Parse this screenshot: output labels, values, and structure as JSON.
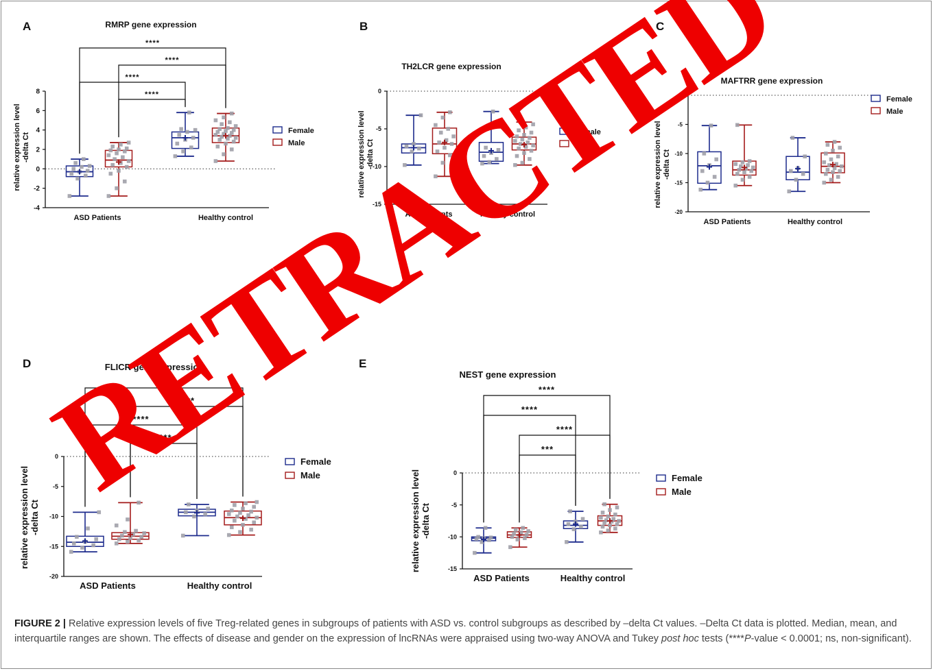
{
  "caption": {
    "label": "FIGURE 2 |",
    "text": " Relative expression levels of five Treg-related genes in subgroups of patients with ASD vs. control subgroups as described by –delta Ct values. –Delta Ct data is plotted. Median, mean, and interquartile ranges are shown. The effects of disease and gender on the expression of lncRNAs were appraised using two-way ANOVA and Tukey ",
    "italic1": "post hoc",
    "text2": " tests (****",
    "italic2": "P",
    "text3": "-value < 0.0001; ns, non-significant)."
  },
  "watermark": "RETRACTED",
  "colors": {
    "female": "#1c2a8c",
    "male": "#a31a1a",
    "point": "#a0a0a8",
    "watermark": "#ee0000"
  },
  "chart_data": [
    {
      "panel": "A",
      "type": "box",
      "title": "RMRP gene expression",
      "ylabel": "relative expression level\n-delta Ct",
      "ylim": [
        -4,
        8
      ],
      "yticks": [
        -4,
        -2,
        0,
        2,
        4,
        6,
        8
      ],
      "categories": [
        "ASD Patients",
        "Healthy control"
      ],
      "legend": [
        "Female",
        "Male"
      ],
      "boxes": [
        {
          "group": 0,
          "sex": "Female",
          "min": -2.8,
          "q1": -0.8,
          "median": -0.3,
          "q3": 0.3,
          "max": 1.0,
          "mean": -0.3,
          "points": [
            -2.8,
            -1.0,
            -0.7,
            -0.5,
            -0.3,
            -0.2,
            0.0,
            0.2,
            0.3,
            0.6,
            1.0
          ]
        },
        {
          "group": 0,
          "sex": "Male",
          "min": -2.8,
          "q1": 0.2,
          "median": 0.9,
          "q3": 1.9,
          "max": 2.7,
          "mean": 0.7,
          "points": [
            -2.8,
            -2.0,
            -1.3,
            -0.5,
            -0.2,
            0.2,
            0.4,
            0.6,
            0.8,
            1.0,
            1.2,
            1.4,
            1.6,
            1.8,
            1.9,
            2.0,
            2.1,
            2.3,
            2.5,
            2.7
          ]
        },
        {
          "group": 1,
          "sex": "Female",
          "min": 1.3,
          "q1": 2.1,
          "median": 3.2,
          "q3": 3.8,
          "max": 5.8,
          "mean": 3.2,
          "points": [
            1.3,
            1.8,
            2.2,
            2.6,
            3.0,
            3.2,
            3.5,
            3.8,
            4.0,
            4.1,
            5.8
          ]
        },
        {
          "group": 1,
          "sex": "Male",
          "min": 0.8,
          "q1": 2.7,
          "median": 3.4,
          "q3": 4.2,
          "max": 5.7,
          "mean": 3.4,
          "points": [
            0.8,
            1.5,
            2.0,
            2.3,
            2.6,
            2.8,
            3.0,
            3.1,
            3.2,
            3.3,
            3.4,
            3.5,
            3.6,
            3.7,
            3.8,
            3.9,
            4.0,
            4.1,
            4.2,
            4.4,
            4.6,
            4.8,
            5.0,
            5.3,
            5.7
          ]
        }
      ],
      "brackets": [
        {
          "from": [
            0,
            "Female"
          ],
          "to": [
            1,
            "Male"
          ],
          "label": "****"
        },
        {
          "from": [
            0,
            "Male"
          ],
          "to": [
            1,
            "Male"
          ],
          "label": "****"
        },
        {
          "from": [
            0,
            "Female"
          ],
          "to": [
            1,
            "Female"
          ],
          "label": "****"
        },
        {
          "from": [
            0,
            "Male"
          ],
          "to": [
            1,
            "Female"
          ],
          "label": "****"
        }
      ]
    },
    {
      "panel": "B",
      "type": "box",
      "title": "TH2LCR gene expression",
      "ylabel": "relative expression level\n-delta Ct",
      "ylim": [
        -15,
        0
      ],
      "yticks": [
        -15,
        -10,
        -5,
        0
      ],
      "categories": [
        "ASD Patients",
        "Healthy control"
      ],
      "legend": [
        "Female",
        "Male"
      ],
      "boxes": [
        {
          "group": 0,
          "sex": "Female",
          "min": -9.8,
          "q1": -8.2,
          "median": -7.5,
          "q3": -7.0,
          "max": -3.2,
          "mean": -7.5,
          "points": [
            -9.8,
            -8.0,
            -7.6,
            -7.3,
            -7.0,
            -3.2
          ]
        },
        {
          "group": 0,
          "sex": "Male",
          "min": -11.3,
          "q1": -8.3,
          "median": -7.0,
          "q3": -4.9,
          "max": -2.8,
          "mean": -6.8,
          "points": [
            -11.3,
            -9.5,
            -8.5,
            -8.0,
            -7.5,
            -7.0,
            -6.8,
            -6.5,
            -6.0,
            -5.5,
            -5.0,
            -4.5,
            -3.5,
            -2.8
          ]
        },
        {
          "group": 1,
          "sex": "Female",
          "min": -9.6,
          "q1": -9.3,
          "median": -8.1,
          "q3": -6.8,
          "max": -2.7,
          "mean": -7.9,
          "points": [
            -9.6,
            -9.4,
            -9.0,
            -8.6,
            -8.2,
            -7.8,
            -7.5,
            -2.7
          ]
        },
        {
          "group": 1,
          "sex": "Male",
          "min": -9.8,
          "q1": -7.8,
          "median": -7.0,
          "q3": -6.1,
          "max": -4.1,
          "mean": -7.1,
          "points": [
            -9.8,
            -9.5,
            -9.0,
            -8.6,
            -8.2,
            -7.9,
            -7.6,
            -7.4,
            -7.2,
            -7.0,
            -6.8,
            -6.6,
            -6.4,
            -6.2,
            -6.0,
            -5.8,
            -5.5,
            -5.2,
            -4.8,
            -4.4,
            -4.1
          ]
        }
      ],
      "brackets": []
    },
    {
      "panel": "C",
      "type": "box",
      "title": "MAFTRR gene expression",
      "ylabel": "relative expression level\n-delta Ct",
      "ylim": [
        -20,
        0
      ],
      "yticks": [
        -20,
        -15,
        -10,
        -5,
        0
      ],
      "categories": [
        "ASD Patients",
        "Healthy control"
      ],
      "legend": [
        "Female",
        "Male"
      ],
      "boxes": [
        {
          "group": 0,
          "sex": "Female",
          "min": -16.2,
          "q1": -15.1,
          "median": -12.1,
          "q3": -9.7,
          "max": -5.2,
          "mean": -12.3,
          "points": [
            -16.2,
            -15.0,
            -14.0,
            -13.0,
            -12.0,
            -11.0,
            -10.0,
            -5.2
          ]
        },
        {
          "group": 0,
          "sex": "Male",
          "min": -15.5,
          "q1": -13.7,
          "median": -12.8,
          "q3": -11.3,
          "max": -5.1,
          "mean": -12.4,
          "points": [
            -15.5,
            -14.5,
            -14.0,
            -13.5,
            -13.2,
            -13.0,
            -12.8,
            -12.6,
            -12.4,
            -12.2,
            -12.0,
            -11.8,
            -11.5,
            -11.3,
            -5.1
          ]
        },
        {
          "group": 1,
          "sex": "Female",
          "min": -16.5,
          "q1": -14.5,
          "median": -13.2,
          "q3": -10.5,
          "max": -7.3,
          "mean": -12.6,
          "points": [
            -16.5,
            -14.5,
            -13.5,
            -13.0,
            -12.5,
            -10.5,
            -7.3
          ]
        },
        {
          "group": 1,
          "sex": "Male",
          "min": -15.0,
          "q1": -13.3,
          "median": -12.2,
          "q3": -9.9,
          "max": -8.0,
          "mean": -11.9,
          "points": [
            -15.0,
            -14.5,
            -14.0,
            -13.5,
            -13.2,
            -13.0,
            -12.8,
            -12.5,
            -12.2,
            -12.0,
            -11.8,
            -11.5,
            -11.0,
            -10.5,
            -10.0,
            -9.5,
            -9.0,
            -8.5,
            -8.0
          ]
        }
      ],
      "brackets": []
    },
    {
      "panel": "D",
      "type": "box",
      "title": "FLICR gene expression",
      "ylabel": "relative expression level\n-delta Ct",
      "ylim": [
        -20,
        0
      ],
      "yticks": [
        -20,
        -15,
        -10,
        -5,
        0
      ],
      "categories": [
        "ASD Patients",
        "Healthy control"
      ],
      "legend": [
        "Female",
        "Male"
      ],
      "boxes": [
        {
          "group": 0,
          "sex": "Female",
          "min": -15.9,
          "q1": -15.0,
          "median": -14.3,
          "q3": -13.3,
          "max": -9.3,
          "mean": -14.1,
          "points": [
            -15.9,
            -15.2,
            -14.8,
            -14.5,
            -14.2,
            -13.8,
            -13.4,
            -12.0,
            -9.3
          ]
        },
        {
          "group": 0,
          "sex": "Male",
          "min": -14.5,
          "q1": -13.8,
          "median": -13.3,
          "q3": -12.7,
          "max": -7.7,
          "mean": -13.0,
          "points": [
            -14.5,
            -14.2,
            -14.0,
            -13.8,
            -13.6,
            -13.4,
            -13.2,
            -13.0,
            -12.8,
            -12.6,
            -12.4,
            -11.5,
            -10.5,
            -7.7
          ]
        },
        {
          "group": 1,
          "sex": "Female",
          "min": -13.2,
          "q1": -9.9,
          "median": -9.3,
          "q3": -8.8,
          "max": -8.0,
          "mean": -9.4,
          "points": [
            -13.2,
            -10.0,
            -9.6,
            -9.3,
            -9.0,
            -8.7,
            -8.0
          ]
        },
        {
          "group": 1,
          "sex": "Male",
          "min": -13.1,
          "q1": -11.4,
          "median": -10.2,
          "q3": -9.1,
          "max": -7.6,
          "mean": -10.3,
          "points": [
            -13.1,
            -12.6,
            -12.2,
            -11.8,
            -11.4,
            -11.0,
            -10.7,
            -10.4,
            -10.2,
            -10.0,
            -9.8,
            -9.6,
            -9.4,
            -9.2,
            -9.0,
            -8.7,
            -8.4,
            -8.1,
            -7.8,
            -7.6
          ]
        }
      ],
      "brackets": [
        {
          "from": [
            0,
            "Female"
          ],
          "to": [
            1,
            "Male"
          ],
          "label": "****"
        },
        {
          "from": [
            0,
            "Male"
          ],
          "to": [
            1,
            "Male"
          ],
          "label": "****"
        },
        {
          "from": [
            0,
            "Female"
          ],
          "to": [
            1,
            "Female"
          ],
          "label": "****"
        },
        {
          "from": [
            0,
            "Male"
          ],
          "to": [
            1,
            "Female"
          ],
          "label": "****"
        }
      ]
    },
    {
      "panel": "E",
      "type": "box",
      "title": "NEST gene expression",
      "ylabel": "relative expression level\n-delta Ct",
      "ylim": [
        -15,
        0
      ],
      "yticks": [
        -15,
        -10,
        -5,
        0
      ],
      "categories": [
        "ASD Patients",
        "Healthy control"
      ],
      "legend": [
        "Female",
        "Male"
      ],
      "boxes": [
        {
          "group": 0,
          "sex": "Female",
          "min": -12.5,
          "q1": -10.6,
          "median": -10.2,
          "q3": -10.0,
          "max": -8.6,
          "mean": -10.4,
          "points": [
            -12.5,
            -10.8,
            -10.5,
            -10.3,
            -10.2,
            -10.1,
            -10.0,
            -8.6
          ]
        },
        {
          "group": 0,
          "sex": "Male",
          "min": -11.6,
          "q1": -10.1,
          "median": -9.7,
          "q3": -9.2,
          "max": -8.6,
          "mean": -9.7,
          "points": [
            -11.6,
            -10.4,
            -10.2,
            -10.0,
            -9.8,
            -9.7,
            -9.5,
            -9.3,
            -9.1,
            -8.9,
            -8.6
          ]
        },
        {
          "group": 1,
          "sex": "Female",
          "min": -10.8,
          "q1": -8.7,
          "median": -8.2,
          "q3": -7.5,
          "max": -6.0,
          "mean": -8.0,
          "points": [
            -10.8,
            -8.8,
            -8.4,
            -8.0,
            -7.6,
            -7.2,
            -6.0
          ]
        },
        {
          "group": 1,
          "sex": "Male",
          "min": -9.3,
          "q1": -8.2,
          "median": -7.5,
          "q3": -6.7,
          "max": -4.9,
          "mean": -7.5,
          "points": [
            -9.3,
            -9.0,
            -8.7,
            -8.4,
            -8.2,
            -8.0,
            -7.8,
            -7.6,
            -7.5,
            -7.4,
            -7.2,
            -7.0,
            -6.8,
            -6.5,
            -6.2,
            -5.8,
            -5.4,
            -4.9
          ]
        }
      ],
      "brackets": [
        {
          "from": [
            0,
            "Female"
          ],
          "to": [
            1,
            "Male"
          ],
          "label": "****"
        },
        {
          "from": [
            0,
            "Female"
          ],
          "to": [
            1,
            "Female"
          ],
          "label": "****"
        },
        {
          "from": [
            0,
            "Male"
          ],
          "to": [
            1,
            "Male"
          ],
          "label": "****"
        },
        {
          "from": [
            0,
            "Male"
          ],
          "to": [
            1,
            "Female"
          ],
          "label": "***"
        }
      ]
    }
  ]
}
